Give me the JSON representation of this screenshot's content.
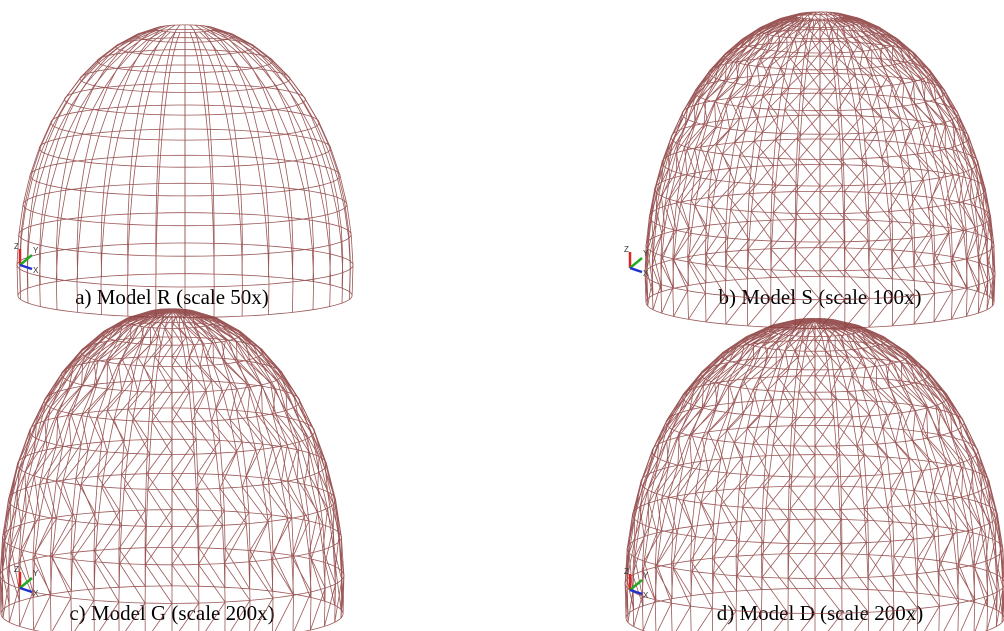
{
  "panels": [
    {
      "caption": "a) Model R (scale 50x)"
    },
    {
      "caption": "b) Model S (scale 100x)"
    },
    {
      "caption": "c) Model G (scale 200x)"
    },
    {
      "caption": "d) Model D (scale 200x)"
    }
  ],
  "axis_labels": [
    "Z",
    "Y",
    "X"
  ]
}
